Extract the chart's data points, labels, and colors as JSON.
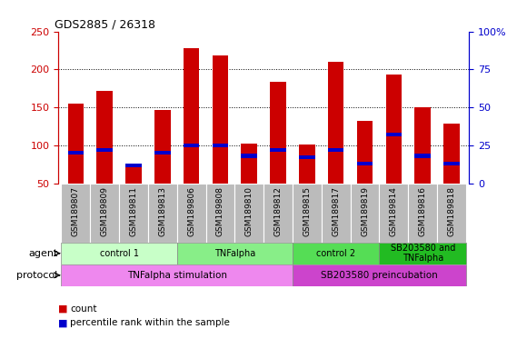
{
  "title": "GDS2885 / 26318",
  "samples": [
    "GSM189807",
    "GSM189809",
    "GSM189811",
    "GSM189813",
    "GSM189806",
    "GSM189808",
    "GSM189810",
    "GSM189812",
    "GSM189815",
    "GSM189817",
    "GSM189819",
    "GSM189814",
    "GSM189816",
    "GSM189818"
  ],
  "count_values": [
    155,
    172,
    72,
    146,
    228,
    218,
    102,
    184,
    101,
    210,
    132,
    193,
    150,
    129
  ],
  "percentile_pct": [
    20,
    22,
    12,
    20,
    25,
    25,
    18,
    22,
    17,
    22,
    13,
    32,
    18,
    13
  ],
  "count_color": "#cc0000",
  "percentile_color": "#0000cc",
  "ylim_left": [
    50,
    250
  ],
  "ylim_right": [
    0,
    100
  ],
  "yticks_left": [
    50,
    100,
    150,
    200,
    250
  ],
  "yticks_right": [
    0,
    25,
    50,
    75,
    100
  ],
  "ytick_labels_right": [
    "0",
    "25",
    "50",
    "75",
    "100%"
  ],
  "grid_values": [
    100,
    150,
    200
  ],
  "agent_groups": [
    {
      "label": "control 1",
      "start": 0,
      "end": 3,
      "color": "#c8ffc8"
    },
    {
      "label": "TNFalpha",
      "start": 4,
      "end": 7,
      "color": "#88ee88"
    },
    {
      "label": "control 2",
      "start": 8,
      "end": 10,
      "color": "#55dd55"
    },
    {
      "label": "SB203580 and\nTNFalpha",
      "start": 11,
      "end": 13,
      "color": "#22bb22"
    }
  ],
  "protocol_groups": [
    {
      "label": "TNFalpha stimulation",
      "start": 0,
      "end": 7,
      "color": "#ee88ee"
    },
    {
      "label": "SB203580 preincubation",
      "start": 8,
      "end": 13,
      "color": "#cc44cc"
    }
  ],
  "bar_width": 0.55,
  "background_color": "#ffffff",
  "tick_area_color": "#bbbbbb",
  "figsize": [
    5.58,
    3.84
  ],
  "dpi": 100
}
